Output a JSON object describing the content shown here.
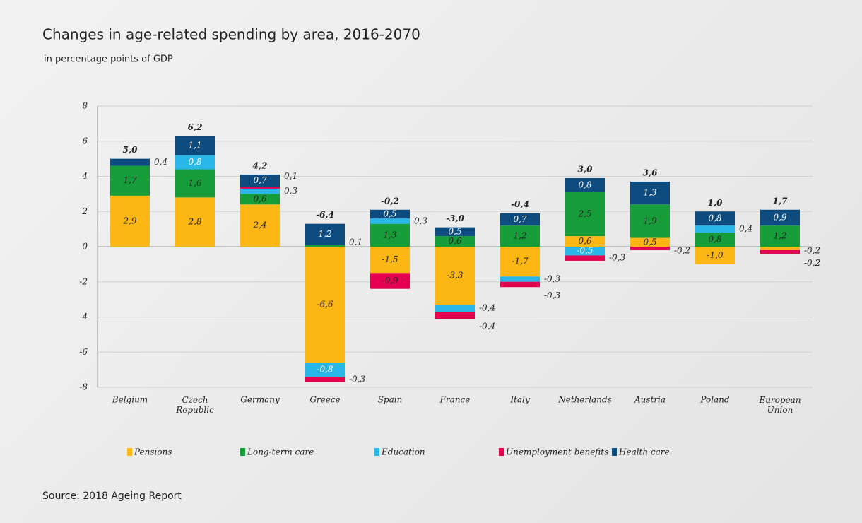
{
  "chart_data": {
    "type": "bar",
    "stacked": true,
    "title": "Changes in age-related spending by area, 2016-2070",
    "subtitle": "in percentage points of GDP",
    "source": "Source: 2018 Ageing Report",
    "categories": [
      "Belgium",
      "Czech Republic",
      "Germany",
      "Greece",
      "Spain",
      "France",
      "Italy",
      "Netherlands",
      "Austria",
      "Poland",
      "European Union"
    ],
    "ylim": [
      -8,
      8
    ],
    "yticks": [
      -8,
      -6,
      -4,
      -2,
      0,
      2,
      4,
      6,
      8
    ],
    "grid": true,
    "series": [
      {
        "name": "Pensions",
        "color": "#fdb714",
        "values": [
          2.9,
          2.8,
          2.4,
          -6.6,
          -1.5,
          -3.3,
          -1.7,
          0.6,
          0.5,
          -1.0,
          -0.2
        ],
        "value_labels": [
          "2,9",
          "2,8",
          "2,4",
          "-6,6",
          "-1,5",
          "-3,3",
          "-1,7",
          "0,6",
          "0,5",
          "-1,0",
          "-0,2"
        ]
      },
      {
        "name": "Long-term care",
        "color": "#169c38",
        "values": [
          1.7,
          1.6,
          0.6,
          0.1,
          1.3,
          0.6,
          1.2,
          2.5,
          1.9,
          0.8,
          1.2
        ],
        "value_labels": [
          "1,7",
          "1,6",
          "0,6",
          "0,1",
          "1,3",
          "0,6",
          "1,2",
          "2,5",
          "1,9",
          "0,8",
          "1,2"
        ]
      },
      {
        "name": "Education",
        "color": "#29b6e8",
        "values": [
          null,
          0.8,
          0.3,
          -0.8,
          0.3,
          -0.4,
          -0.3,
          -0.5,
          null,
          0.4,
          null
        ],
        "value_labels": [
          null,
          "0,8",
          "0,3",
          "-0,8",
          "0,3",
          "-0,4",
          "-0,3",
          "-0,5",
          null,
          "0,4",
          null
        ]
      },
      {
        "name": "Unemployment benefits",
        "color": "#e4004f",
        "values": [
          null,
          null,
          0.1,
          -0.3,
          -0.9,
          -0.4,
          -0.3,
          -0.3,
          -0.2,
          null,
          -0.2
        ],
        "value_labels": [
          null,
          null,
          "0,1",
          "-0,3",
          "-0,9",
          "-0,4",
          "-0,3",
          "-0,3",
          "-0,2",
          null,
          "-0,2"
        ]
      },
      {
        "name": "Health care",
        "color": "#0e4c7f",
        "values": [
          0.4,
          1.1,
          0.7,
          1.2,
          0.5,
          0.5,
          0.7,
          0.8,
          1.3,
          0.8,
          0.9
        ],
        "value_labels": [
          "0,4",
          "1,1",
          "0,7",
          "1,2",
          "0,5",
          "0,5",
          "0,7",
          "0,8",
          "1,3",
          "0,8",
          "0,9"
        ]
      }
    ],
    "totals": [
      5.0,
      6.2,
      4.2,
      -6.4,
      -0.2,
      -3.0,
      -0.4,
      3.0,
      3.6,
      1.0,
      1.7
    ],
    "total_labels": [
      "5,0",
      "6,2",
      "4,2",
      "-6,4",
      "-0,2",
      "-3,0",
      "-0,4",
      "3,0",
      "3,6",
      "1,0",
      "1,7"
    ]
  }
}
